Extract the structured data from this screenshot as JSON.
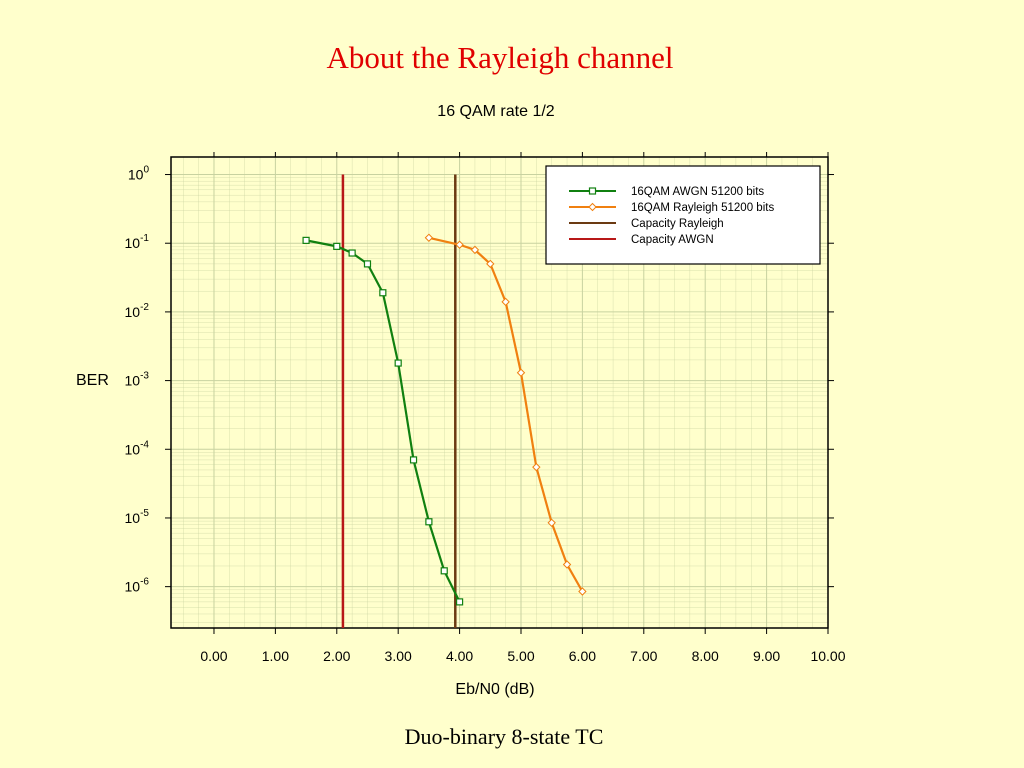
{
  "slide": {
    "title": "About the Rayleigh channel",
    "footer": "Duo-binary 8-state TC"
  },
  "colors": {
    "background": "#ffffcc",
    "title": "#e00000",
    "grid": "#c8d2a0",
    "awgn_series": "#108010",
    "rayleigh_series": "#f08010",
    "capacity_rayleigh": "#6b3a12",
    "capacity_awgn": "#b81818"
  },
  "chart_data": {
    "type": "line",
    "title": "16 QAM rate 1/2",
    "xlabel": "Eb/N0 (dB)",
    "ylabel": "BER",
    "xlim": [
      -0.7,
      10.0
    ],
    "ylim": [
      2.5e-07,
      1.8
    ],
    "yscale": "log",
    "grid": true,
    "legend_position": "top-right",
    "x_ticks": [
      "0.00",
      "1.00",
      "2.00",
      "3.00",
      "4.00",
      "5.00",
      "6.00",
      "7.00",
      "8.00",
      "9.00",
      "10.00"
    ],
    "y_ticks": [
      {
        "base": "10",
        "exp": "0",
        "value": 1
      },
      {
        "base": "10",
        "exp": "-1",
        "value": 0.1
      },
      {
        "base": "10",
        "exp": "-2",
        "value": 0.01
      },
      {
        "base": "10",
        "exp": "-3",
        "value": 0.001
      },
      {
        "base": "10",
        "exp": "-4",
        "value": 0.0001
      },
      {
        "base": "10",
        "exp": "-5",
        "value": 1e-05
      },
      {
        "base": "10",
        "exp": "-6",
        "value": 1e-06
      }
    ],
    "series": [
      {
        "name": "16QAM AWGN 51200 bits",
        "marker": "square",
        "color": "#108010",
        "x": [
          1.5,
          2.0,
          2.25,
          2.5,
          2.75,
          3.0,
          3.25,
          3.5,
          3.75,
          4.0
        ],
        "y": [
          0.11,
          0.09,
          0.072,
          0.05,
          0.019,
          0.0018,
          7e-05,
          8.8e-06,
          1.7e-06,
          6e-07
        ]
      },
      {
        "name": "16QAM Rayleigh 51200 bits",
        "marker": "diamond",
        "color": "#f08010",
        "x": [
          3.5,
          4.0,
          4.25,
          4.5,
          4.75,
          5.0,
          5.25,
          5.5,
          5.75,
          6.0
        ],
        "y": [
          0.12,
          0.095,
          0.08,
          0.05,
          0.014,
          0.0013,
          5.5e-05,
          8.5e-06,
          2.1e-06,
          8.5e-07
        ]
      }
    ],
    "vlines": [
      {
        "name": "Capacity Rayleigh",
        "x": 3.93,
        "color": "#6b3a12"
      },
      {
        "name": "Capacity AWGN",
        "x": 2.1,
        "color": "#b81818"
      }
    ]
  }
}
